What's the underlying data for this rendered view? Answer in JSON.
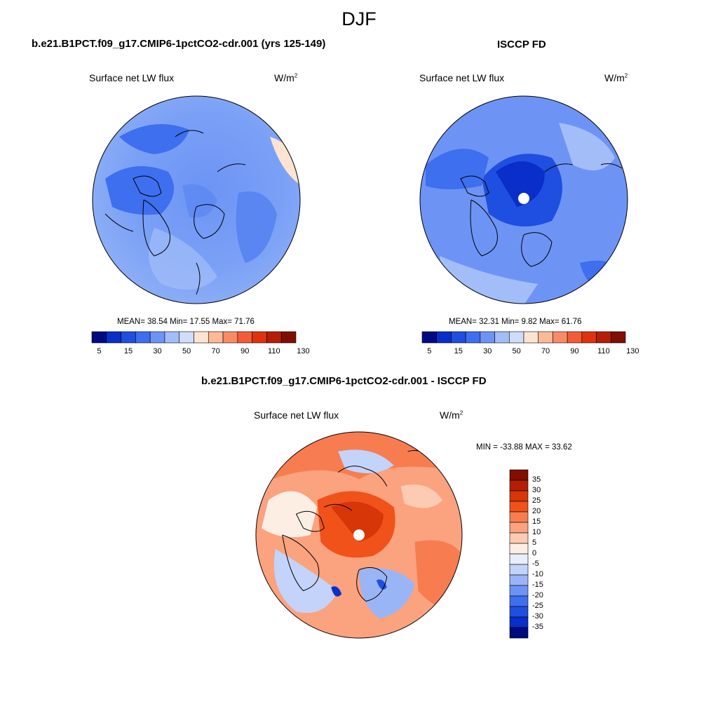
{
  "season": "DJF",
  "panels": {
    "model": {
      "title": "b.e21.B1PCT.f09_g17.CMIP6-1pctCO2-cdr.001 (yrs 125-149)",
      "variable": "Surface net LW flux",
      "units": "W/m",
      "units_sup": "2",
      "stats": {
        "mean": "38.54",
        "min": "17.55",
        "max": "71.76",
        "text": "MEAN=  38.54  Min=  17.55  Max=  71.76"
      }
    },
    "obs": {
      "title": "ISCCP FD",
      "variable": "Surface net LW flux",
      "units": "W/m",
      "units_sup": "2",
      "stats": {
        "mean": "32.31",
        "min": "9.82",
        "max": "61.76",
        "text": "MEAN=  32.31  Min=   9.82  Max=  61.76"
      }
    },
    "diff": {
      "title": "b.e21.B1PCT.f09_g17.CMIP6-1pctCO2-cdr.001 - ISCCP FD",
      "variable": "Surface net LW flux",
      "units": "W/m",
      "units_sup": "2",
      "stats": {
        "min": "-33.88",
        "max": "33.62",
        "text": "MIN = -33.88 MAX =  33.62"
      }
    }
  },
  "colorbar_abs": {
    "colors": [
      "#000b80",
      "#0a2ec9",
      "#1f4fe0",
      "#3d6fef",
      "#6d94f5",
      "#a3bdf9",
      "#cfddfb",
      "#fde3d1",
      "#fcb998",
      "#f88b67",
      "#f25c38",
      "#e0320f",
      "#b31f05",
      "#800f00"
    ],
    "tick_labels": [
      "5",
      "15",
      "30",
      "50",
      "70",
      "90",
      "110",
      "130"
    ]
  },
  "colorbar_diff": {
    "colors": [
      "#800f00",
      "#b31f05",
      "#d63608",
      "#f0521a",
      "#f77d50",
      "#fba27f",
      "#fdcbb1",
      "#fdeee3",
      "#e8eefc",
      "#c3d3f9",
      "#9ab5f6",
      "#6d94f5",
      "#3d6fef",
      "#1f4fe0",
      "#0a2ec9",
      "#000b80"
    ],
    "tick_labels": [
      "35",
      "30",
      "25",
      "20",
      "15",
      "10",
      "5",
      "0",
      "-5",
      "-10",
      "-15",
      "-20",
      "-25",
      "-30",
      "-35"
    ]
  }
}
